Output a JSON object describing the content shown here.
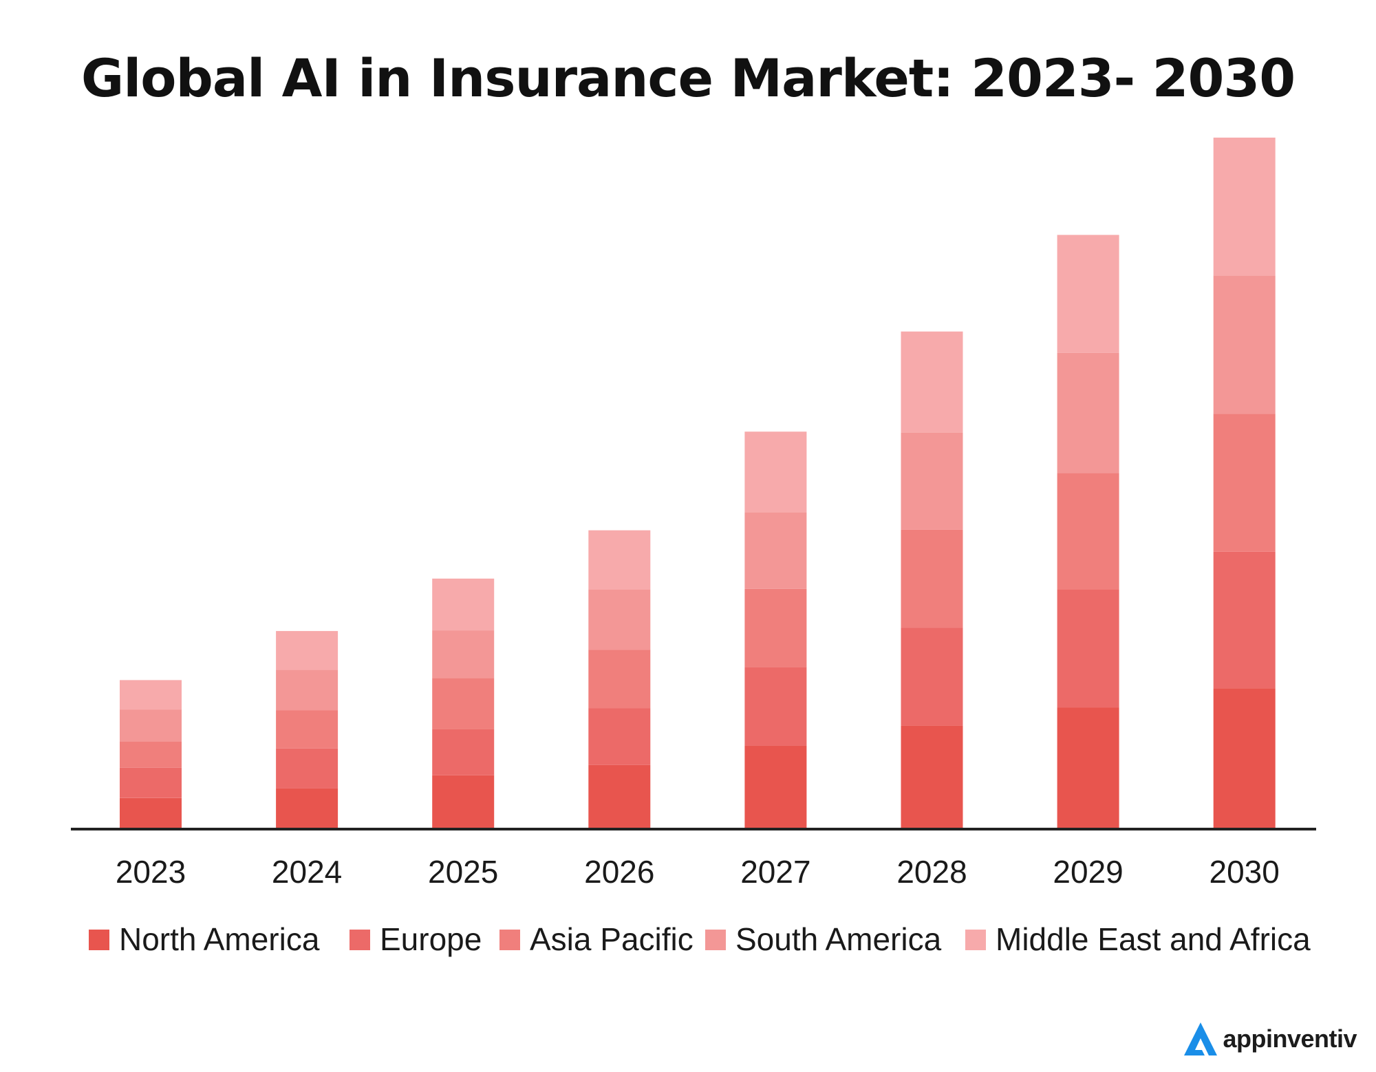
{
  "title": "Global AI in Insurance Market: 2023- 2030",
  "brand": {
    "name": "appinventiv",
    "logo_icon": "appinventiv-logo-icon",
    "logo_color": "#1a8ee8"
  },
  "chart_data": {
    "type": "bar",
    "stacked": true,
    "title": "Global AI in Insurance Market: 2023- 2030",
    "xlabel": "",
    "ylabel": "",
    "categories": [
      "2023",
      "2024",
      "2025",
      "2026",
      "2027",
      "2028",
      "2029",
      "2030"
    ],
    "ylim": [
      0,
      1000
    ],
    "grid": false,
    "y_axis_labels_shown": false,
    "legend_position": "bottom",
    "series": [
      {
        "name": "North America",
        "color": "#e8554e",
        "values": [
          43,
          57,
          76,
          91,
          119,
          148,
          174,
          202
        ]
      },
      {
        "name": "Europe",
        "color": "#ec6a68",
        "values": [
          44,
          58,
          67,
          82,
          114,
          142,
          171,
          198
        ]
      },
      {
        "name": "Asia Pacific",
        "color": "#f07f7c",
        "values": [
          38,
          55,
          74,
          85,
          113,
          142,
          169,
          200
        ]
      },
      {
        "name": "South America",
        "color": "#f39796",
        "values": [
          46,
          59,
          69,
          87,
          111,
          141,
          174,
          200
        ]
      },
      {
        "name": "Middle East and Africa",
        "color": "#f7aaab",
        "values": [
          43,
          56,
          75,
          86,
          117,
          146,
          171,
          200
        ]
      }
    ]
  }
}
